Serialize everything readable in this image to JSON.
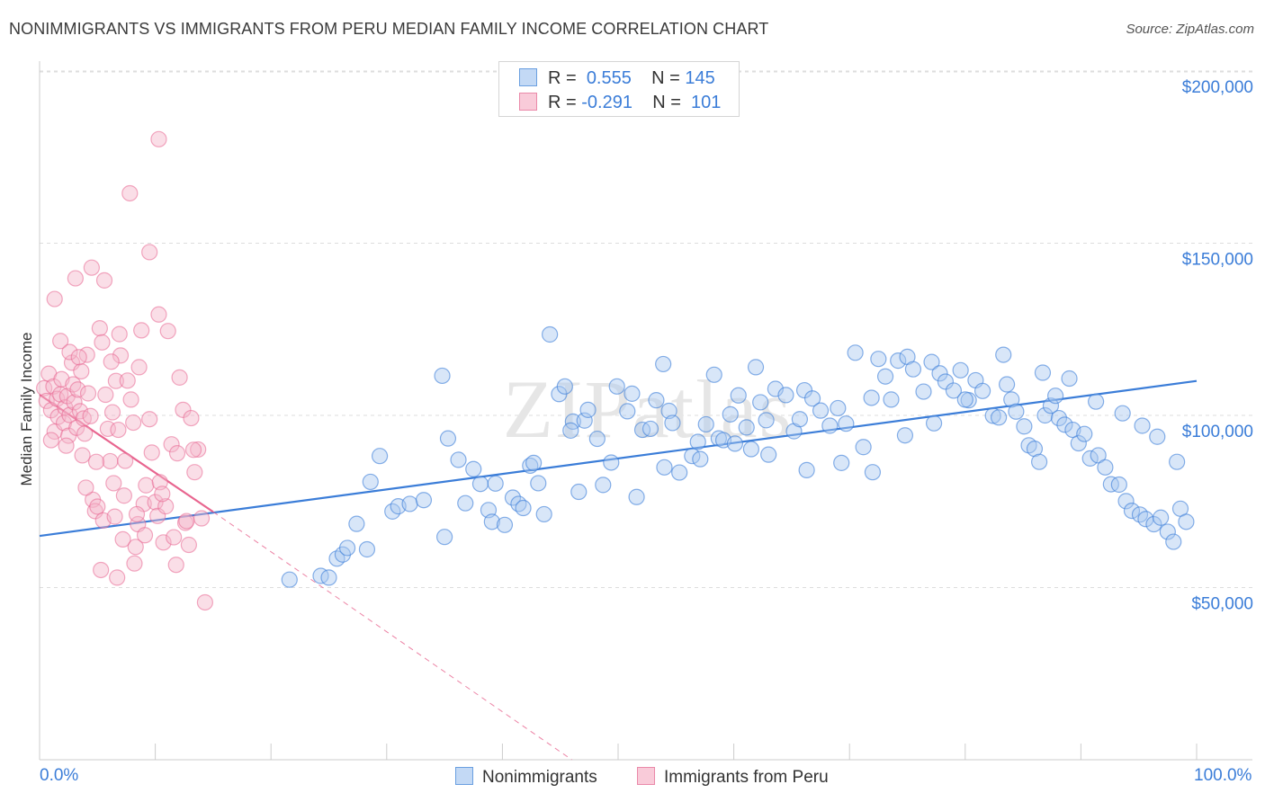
{
  "title": "NONIMMIGRANTS VS IMMIGRANTS FROM PERU MEDIAN FAMILY INCOME CORRELATION CHART",
  "source": "Source: ZipAtlas.com",
  "watermark": "ZIPatlas",
  "colors": {
    "blue": "#3b7dd8",
    "blue_fill": "#a9c8f0",
    "pink": "#e8658f",
    "pink_fill": "#f5b6c9",
    "grid": "#dddddd"
  },
  "legend": {
    "rows": [
      {
        "r_label": "R =",
        "r_value": "0.555",
        "n_label": "N =",
        "n_value": "145"
      },
      {
        "r_label": "R =",
        "r_value": "-0.291",
        "n_label": "N =",
        "n_value": "101"
      }
    ]
  },
  "bottom_legend": [
    "Nonimmigrants",
    "Immigrants from Peru"
  ],
  "chart_data": {
    "type": "scatter",
    "title": "NONIMMIGRANTS VS IMMIGRANTS FROM PERU MEDIAN FAMILY INCOME CORRELATION CHART",
    "xlabel": "",
    "ylabel": "Median Family Income",
    "xlim": [
      0,
      100
    ],
    "ylim": [
      0,
      205000
    ],
    "x_tick_labels": [
      "0.0%",
      "100.0%"
    ],
    "y_ticks": [
      {
        "value": 50000,
        "label": "$50,000"
      },
      {
        "value": 100000,
        "label": "$100,000"
      },
      {
        "value": 150000,
        "label": "$150,000"
      },
      {
        "value": 200000,
        "label": "$200,000"
      }
    ],
    "series": [
      {
        "name": "Nonimmigrants",
        "r": 0.555,
        "n": 145,
        "trend": {
          "x0": 0,
          "y0": 65000,
          "x1": 100,
          "y1": 110000
        },
        "points": [
          [
            21.6,
            52300
          ],
          [
            24.3,
            53400
          ],
          [
            25.0,
            52900
          ],
          [
            25.7,
            58400
          ],
          [
            26.2,
            59600
          ],
          [
            26.6,
            61500
          ],
          [
            28.3,
            61100
          ],
          [
            27.4,
            68500
          ],
          [
            28.6,
            80700
          ],
          [
            29.4,
            88200
          ],
          [
            30.5,
            72100
          ],
          [
            31.0,
            73600
          ],
          [
            32.0,
            74300
          ],
          [
            33.2,
            75400
          ],
          [
            35.0,
            64700
          ],
          [
            35.3,
            93300
          ],
          [
            34.8,
            111500
          ],
          [
            36.2,
            87100
          ],
          [
            36.8,
            74500
          ],
          [
            37.5,
            84400
          ],
          [
            38.1,
            80100
          ],
          [
            38.8,
            72500
          ],
          [
            39.1,
            69100
          ],
          [
            39.4,
            80200
          ],
          [
            40.2,
            68200
          ],
          [
            40.9,
            76100
          ],
          [
            41.4,
            74300
          ],
          [
            41.8,
            73100
          ],
          [
            42.4,
            85400
          ],
          [
            42.7,
            86200
          ],
          [
            43.1,
            80300
          ],
          [
            43.6,
            71300
          ],
          [
            44.1,
            123500
          ],
          [
            44.9,
            106200
          ],
          [
            45.4,
            108400
          ],
          [
            46.1,
            98200
          ],
          [
            46.6,
            77800
          ],
          [
            47.1,
            98500
          ],
          [
            47.4,
            101600
          ],
          [
            48.2,
            93200
          ],
          [
            48.7,
            79800
          ],
          [
            49.4,
            86300
          ],
          [
            50.8,
            101200
          ],
          [
            51.2,
            106300
          ],
          [
            51.6,
            76300
          ],
          [
            52.1,
            95800
          ],
          [
            52.8,
            96100
          ],
          [
            53.3,
            104400
          ],
          [
            54.4,
            101300
          ],
          [
            54.7,
            97800
          ],
          [
            55.3,
            83400
          ],
          [
            56.4,
            88200
          ],
          [
            56.9,
            92300
          ],
          [
            57.6,
            97400
          ],
          [
            58.7,
            93300
          ],
          [
            59.1,
            92800
          ],
          [
            59.7,
            100300
          ],
          [
            60.4,
            105800
          ],
          [
            61.1,
            96500
          ],
          [
            61.5,
            90200
          ],
          [
            62.3,
            103800
          ],
          [
            62.8,
            98600
          ],
          [
            63.6,
            107700
          ],
          [
            64.5,
            105900
          ],
          [
            65.2,
            95400
          ],
          [
            65.7,
            98900
          ],
          [
            66.1,
            107300
          ],
          [
            66.8,
            104900
          ],
          [
            67.5,
            101400
          ],
          [
            68.3,
            97000
          ],
          [
            69.0,
            102100
          ],
          [
            69.7,
            97600
          ],
          [
            70.5,
            118200
          ],
          [
            71.2,
            90800
          ],
          [
            71.9,
            105100
          ],
          [
            72.5,
            116400
          ],
          [
            73.1,
            111300
          ],
          [
            73.6,
            104600
          ],
          [
            74.2,
            115900
          ],
          [
            75.0,
            117000
          ],
          [
            75.5,
            113400
          ],
          [
            76.4,
            106900
          ],
          [
            77.1,
            115500
          ],
          [
            77.8,
            112200
          ],
          [
            78.3,
            109800
          ],
          [
            79.0,
            107200
          ],
          [
            79.6,
            113100
          ],
          [
            80.3,
            104400
          ],
          [
            80.9,
            110200
          ],
          [
            81.5,
            107100
          ],
          [
            82.4,
            99900
          ],
          [
            82.9,
            99400
          ],
          [
            83.3,
            117600
          ],
          [
            84.0,
            104600
          ],
          [
            84.4,
            101100
          ],
          [
            85.1,
            96800
          ],
          [
            85.5,
            91300
          ],
          [
            86.0,
            90300
          ],
          [
            86.4,
            86500
          ],
          [
            86.9,
            100000
          ],
          [
            87.4,
            102800
          ],
          [
            87.8,
            105700
          ],
          [
            88.1,
            99200
          ],
          [
            88.6,
            97300
          ],
          [
            89.3,
            95800
          ],
          [
            89.8,
            91900
          ],
          [
            90.3,
            94600
          ],
          [
            90.8,
            87500
          ],
          [
            91.5,
            88400
          ],
          [
            92.1,
            84900
          ],
          [
            92.6,
            80000
          ],
          [
            93.3,
            79900
          ],
          [
            93.9,
            75100
          ],
          [
            94.4,
            72300
          ],
          [
            95.1,
            71200
          ],
          [
            95.6,
            69900
          ],
          [
            96.3,
            68400
          ],
          [
            96.9,
            70300
          ],
          [
            97.5,
            66200
          ],
          [
            98.0,
            63300
          ],
          [
            98.6,
            72900
          ],
          [
            99.1,
            69100
          ],
          [
            54.0,
            84900
          ],
          [
            57.1,
            87300
          ],
          [
            60.1,
            91800
          ],
          [
            63.0,
            88600
          ],
          [
            66.3,
            84100
          ],
          [
            69.3,
            86200
          ],
          [
            72.0,
            83500
          ],
          [
            74.8,
            94200
          ],
          [
            77.3,
            97700
          ],
          [
            80.0,
            104600
          ],
          [
            83.6,
            109000
          ],
          [
            86.7,
            112400
          ],
          [
            89.0,
            110700
          ],
          [
            91.3,
            104000
          ],
          [
            93.6,
            100600
          ],
          [
            95.3,
            97000
          ],
          [
            96.6,
            93800
          ],
          [
            98.3,
            86500
          ],
          [
            45.9,
            95600
          ],
          [
            49.9,
            108400
          ],
          [
            53.9,
            114900
          ],
          [
            58.3,
            111800
          ],
          [
            61.9,
            114000
          ]
        ]
      },
      {
        "name": "Immigrants from Peru",
        "r": -0.291,
        "n": 101,
        "trend": {
          "x0": 0,
          "y0": 106000,
          "x1": 15,
          "y1": 72000,
          "dashed_to_x": 46,
          "dashed_to_y": 0
        },
        "points": [
          [
            0.4,
            107900
          ],
          [
            0.6,
            104200
          ],
          [
            0.8,
            112100
          ],
          [
            1.0,
            101500
          ],
          [
            1.2,
            108400
          ],
          [
            1.3,
            95300
          ],
          [
            1.5,
            104800
          ],
          [
            1.6,
            99600
          ],
          [
            1.8,
            106100
          ],
          [
            1.9,
            110500
          ],
          [
            2.1,
            97800
          ],
          [
            2.2,
            102300
          ],
          [
            2.4,
            105600
          ],
          [
            2.5,
            94100
          ],
          [
            2.6,
            100100
          ],
          [
            2.8,
            115300
          ],
          [
            2.9,
            109000
          ],
          [
            3.0,
            103800
          ],
          [
            3.2,
            96400
          ],
          [
            3.3,
            107500
          ],
          [
            3.5,
            101200
          ],
          [
            3.6,
            112800
          ],
          [
            3.8,
            99100
          ],
          [
            3.9,
            94700
          ],
          [
            4.1,
            117600
          ],
          [
            4.2,
            106400
          ],
          [
            4.4,
            99800
          ],
          [
            4.6,
            75500
          ],
          [
            4.8,
            72200
          ],
          [
            5.0,
            73500
          ],
          [
            5.2,
            125300
          ],
          [
            5.4,
            121200
          ],
          [
            5.5,
            69500
          ],
          [
            5.7,
            106000
          ],
          [
            5.9,
            96100
          ],
          [
            6.1,
            86700
          ],
          [
            6.3,
            100900
          ],
          [
            6.5,
            70600
          ],
          [
            6.6,
            110000
          ],
          [
            6.8,
            95800
          ],
          [
            7.0,
            117400
          ],
          [
            7.2,
            64000
          ],
          [
            7.4,
            86800
          ],
          [
            7.6,
            110100
          ],
          [
            7.9,
            104600
          ],
          [
            8.1,
            97900
          ],
          [
            8.3,
            61800
          ],
          [
            8.5,
            68400
          ],
          [
            8.8,
            124700
          ],
          [
            9.0,
            74300
          ],
          [
            9.2,
            79700
          ],
          [
            9.5,
            98900
          ],
          [
            9.7,
            89200
          ],
          [
            10.0,
            74800
          ],
          [
            10.2,
            70800
          ],
          [
            10.4,
            80600
          ],
          [
            10.7,
            63100
          ],
          [
            10.9,
            73600
          ],
          [
            11.1,
            124500
          ],
          [
            11.4,
            91600
          ],
          [
            11.6,
            64600
          ],
          [
            11.9,
            89000
          ],
          [
            12.1,
            111000
          ],
          [
            12.4,
            101600
          ],
          [
            12.6,
            68800
          ],
          [
            12.9,
            62400
          ],
          [
            13.1,
            99200
          ],
          [
            13.4,
            83500
          ],
          [
            13.7,
            90100
          ],
          [
            14.0,
            70100
          ],
          [
            14.3,
            45700
          ],
          [
            1.3,
            133800
          ],
          [
            3.1,
            139800
          ],
          [
            4.5,
            142900
          ],
          [
            5.6,
            139200
          ],
          [
            7.8,
            164500
          ],
          [
            9.5,
            147400
          ],
          [
            10.3,
            129300
          ],
          [
            1.8,
            121600
          ],
          [
            2.6,
            118400
          ],
          [
            3.4,
            116900
          ],
          [
            6.2,
            115600
          ],
          [
            6.9,
            123600
          ],
          [
            8.6,
            114000
          ],
          [
            1.0,
            92800
          ],
          [
            2.3,
            91200
          ],
          [
            3.7,
            88400
          ],
          [
            4.9,
            86500
          ],
          [
            6.4,
            80300
          ],
          [
            7.3,
            76700
          ],
          [
            8.4,
            71300
          ],
          [
            9.1,
            65200
          ],
          [
            10.6,
            77200
          ],
          [
            11.8,
            56600
          ],
          [
            12.7,
            69300
          ],
          [
            4.0,
            79000
          ],
          [
            5.3,
            55100
          ],
          [
            6.7,
            52900
          ],
          [
            8.2,
            57000
          ],
          [
            13.3,
            90000
          ],
          [
            10.3,
            180200
          ]
        ]
      }
    ]
  }
}
